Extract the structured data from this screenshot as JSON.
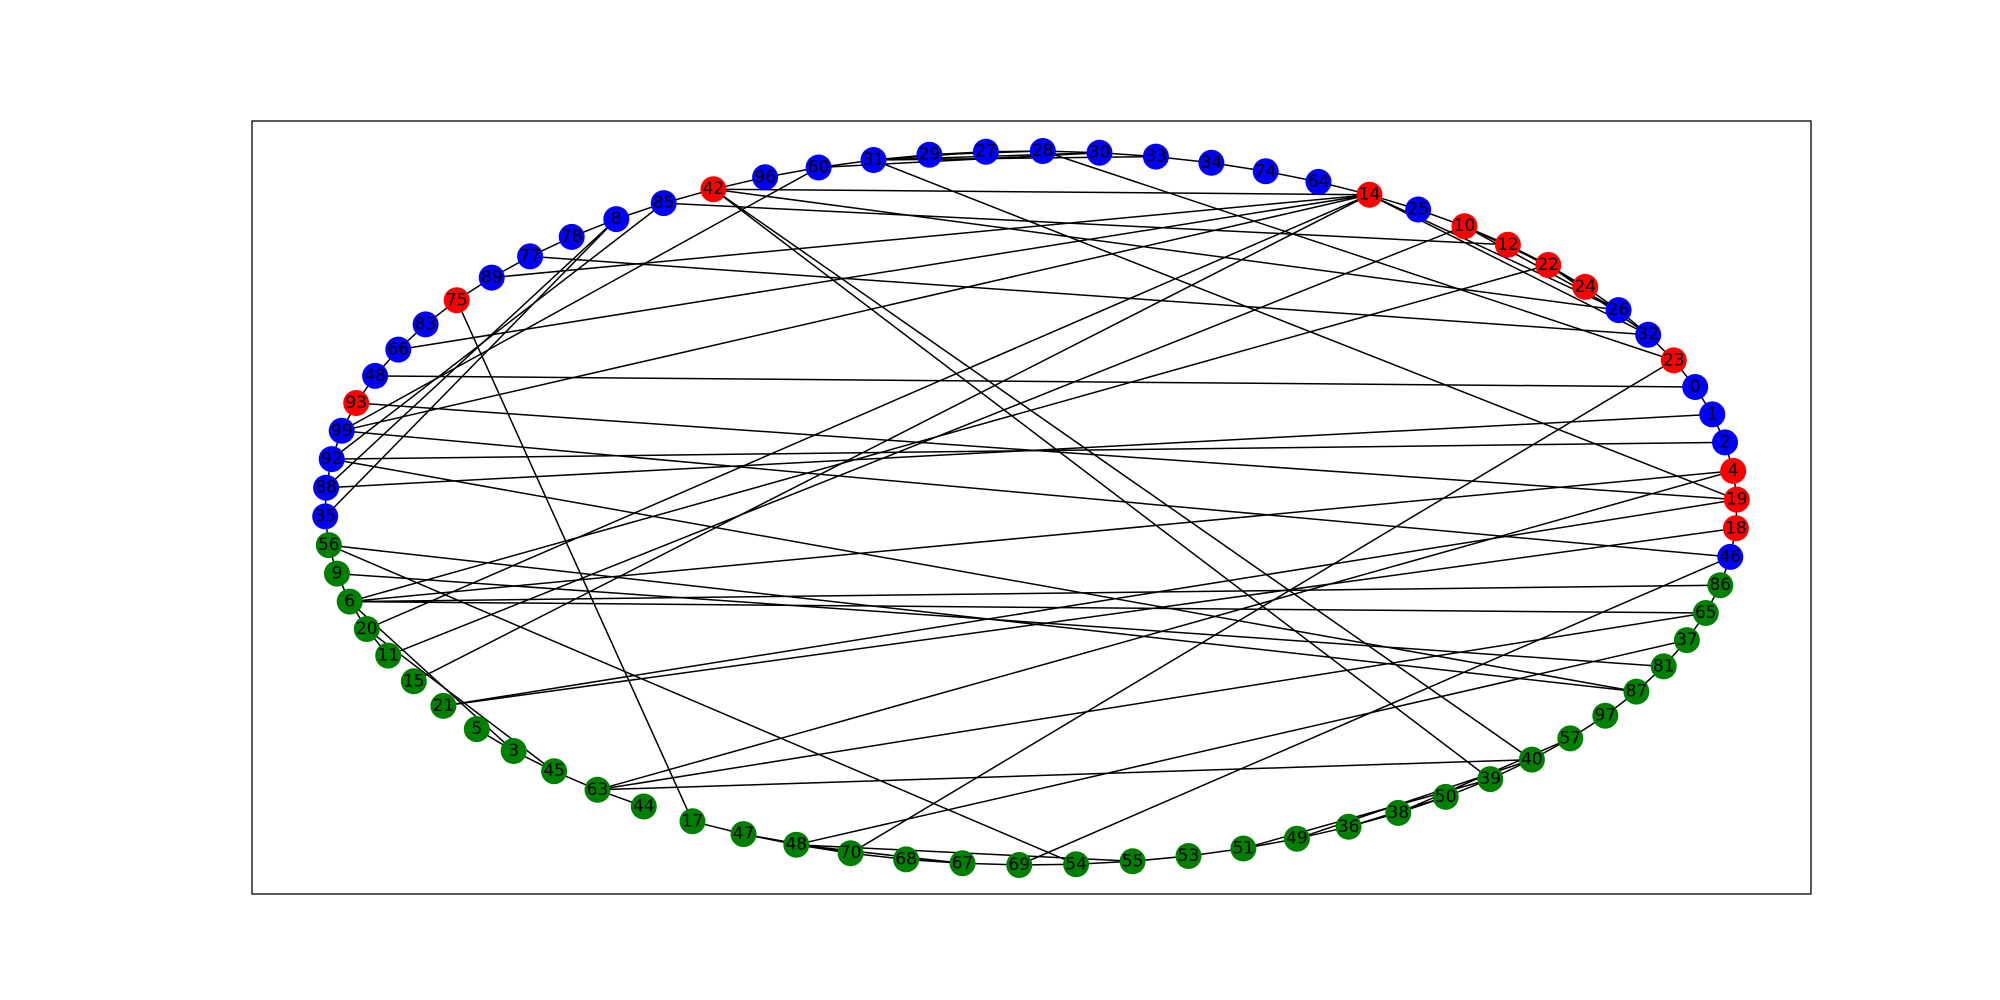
{
  "colors": {
    "red_group": "#ff0000",
    "blue_group": "#0000ff",
    "green_group": "#008000",
    "edge": "#000000",
    "background": "#ffffff",
    "label_text": "#000000"
  },
  "graph": {
    "layout": "circular",
    "nodes": [
      {
        "id": "14",
        "group": "red_group"
      },
      {
        "id": "25",
        "group": "blue_group"
      },
      {
        "id": "10",
        "group": "red_group"
      },
      {
        "id": "12",
        "group": "red_group"
      },
      {
        "id": "22",
        "group": "red_group"
      },
      {
        "id": "24",
        "group": "red_group"
      },
      {
        "id": "26",
        "group": "blue_group"
      },
      {
        "id": "32",
        "group": "blue_group"
      },
      {
        "id": "23",
        "group": "red_group"
      },
      {
        "id": "0",
        "group": "blue_group"
      },
      {
        "id": "1",
        "group": "blue_group"
      },
      {
        "id": "2",
        "group": "blue_group"
      },
      {
        "id": "4",
        "group": "red_group"
      },
      {
        "id": "19",
        "group": "red_group"
      },
      {
        "id": "18",
        "group": "red_group"
      },
      {
        "id": "46",
        "group": "blue_group"
      },
      {
        "id": "86",
        "group": "green_group"
      },
      {
        "id": "65",
        "group": "green_group"
      },
      {
        "id": "37",
        "group": "green_group"
      },
      {
        "id": "81",
        "group": "green_group"
      },
      {
        "id": "87",
        "group": "green_group"
      },
      {
        "id": "97",
        "group": "green_group"
      },
      {
        "id": "57",
        "group": "green_group"
      },
      {
        "id": "40",
        "group": "green_group"
      },
      {
        "id": "39",
        "group": "green_group"
      },
      {
        "id": "50",
        "group": "green_group"
      },
      {
        "id": "38",
        "group": "green_group"
      },
      {
        "id": "36",
        "group": "green_group"
      },
      {
        "id": "49",
        "group": "green_group"
      },
      {
        "id": "51",
        "group": "green_group"
      },
      {
        "id": "53",
        "group": "green_group"
      },
      {
        "id": "55",
        "group": "green_group"
      },
      {
        "id": "54",
        "group": "green_group"
      },
      {
        "id": "69",
        "group": "green_group"
      },
      {
        "id": "67",
        "group": "green_group"
      },
      {
        "id": "68",
        "group": "green_group"
      },
      {
        "id": "70",
        "group": "green_group"
      },
      {
        "id": "48",
        "group": "green_group"
      },
      {
        "id": "47",
        "group": "green_group"
      },
      {
        "id": "17",
        "group": "green_group"
      },
      {
        "id": "44",
        "group": "green_group"
      },
      {
        "id": "63",
        "group": "green_group"
      },
      {
        "id": "45",
        "group": "green_group"
      },
      {
        "id": "3",
        "group": "green_group"
      },
      {
        "id": "5",
        "group": "green_group"
      },
      {
        "id": "21",
        "group": "green_group"
      },
      {
        "id": "15",
        "group": "green_group"
      },
      {
        "id": "11",
        "group": "green_group"
      },
      {
        "id": "20",
        "group": "green_group"
      },
      {
        "id": "6",
        "group": "green_group"
      },
      {
        "id": "9",
        "group": "green_group"
      },
      {
        "id": "56",
        "group": "green_group"
      },
      {
        "id": "35",
        "group": "blue_group"
      },
      {
        "id": "88",
        "group": "blue_group"
      },
      {
        "id": "92",
        "group": "blue_group"
      },
      {
        "id": "99",
        "group": "blue_group"
      },
      {
        "id": "93",
        "group": "red_group"
      },
      {
        "id": "48b",
        "label": "48",
        "group": "blue_group"
      },
      {
        "id": "66",
        "group": "blue_group"
      },
      {
        "id": "83",
        "group": "blue_group"
      },
      {
        "id": "75",
        "group": "red_group"
      },
      {
        "id": "89",
        "group": "blue_group"
      },
      {
        "id": "77",
        "group": "blue_group"
      },
      {
        "id": "78",
        "group": "blue_group"
      },
      {
        "id": "8",
        "group": "blue_group"
      },
      {
        "id": "85",
        "group": "blue_group"
      },
      {
        "id": "42",
        "group": "red_group"
      },
      {
        "id": "96",
        "group": "blue_group"
      },
      {
        "id": "60",
        "group": "blue_group"
      },
      {
        "id": "31",
        "group": "blue_group"
      },
      {
        "id": "29",
        "group": "blue_group"
      },
      {
        "id": "27",
        "group": "blue_group"
      },
      {
        "id": "28",
        "group": "blue_group"
      },
      {
        "id": "30",
        "group": "blue_group"
      },
      {
        "id": "33",
        "group": "blue_group"
      },
      {
        "id": "34",
        "group": "blue_group"
      },
      {
        "id": "74",
        "group": "blue_group"
      },
      {
        "id": "64",
        "group": "blue_group"
      }
    ],
    "edges": [
      [
        "14",
        "25"
      ],
      [
        "25",
        "10"
      ],
      [
        "10",
        "12"
      ],
      [
        "12",
        "22"
      ],
      [
        "22",
        "24"
      ],
      [
        "24",
        "26"
      ],
      [
        "26",
        "32"
      ],
      [
        "32",
        "23"
      ],
      [
        "23",
        "0"
      ],
      [
        "0",
        "1"
      ],
      [
        "1",
        "2"
      ],
      [
        "2",
        "4"
      ],
      [
        "4",
        "19"
      ],
      [
        "19",
        "18"
      ],
      [
        "18",
        "46"
      ],
      [
        "46",
        "86"
      ],
      [
        "86",
        "65"
      ],
      [
        "65",
        "37"
      ],
      [
        "37",
        "81"
      ],
      [
        "81",
        "87"
      ],
      [
        "87",
        "97"
      ],
      [
        "97",
        "57"
      ],
      [
        "57",
        "40"
      ],
      [
        "40",
        "39"
      ],
      [
        "39",
        "50"
      ],
      [
        "50",
        "38"
      ],
      [
        "38",
        "36"
      ],
      [
        "36",
        "49"
      ],
      [
        "49",
        "51"
      ],
      [
        "51",
        "53"
      ],
      [
        "53",
        "55"
      ],
      [
        "55",
        "54"
      ],
      [
        "54",
        "69"
      ],
      [
        "69",
        "67"
      ],
      [
        "67",
        "68"
      ],
      [
        "68",
        "70"
      ],
      [
        "70",
        "48"
      ],
      [
        "48",
        "47"
      ],
      [
        "47",
        "17"
      ],
      [
        "44",
        "63"
      ],
      [
        "63",
        "45"
      ],
      [
        "45",
        "3"
      ],
      [
        "3",
        "5"
      ],
      [
        "11",
        "20"
      ],
      [
        "20",
        "6"
      ],
      [
        "6",
        "9"
      ],
      [
        "9",
        "56"
      ],
      [
        "56",
        "35"
      ],
      [
        "35",
        "88"
      ],
      [
        "88",
        "92"
      ],
      [
        "92",
        "99"
      ],
      [
        "99",
        "93"
      ],
      [
        "93",
        "48b"
      ],
      [
        "48b",
        "66"
      ],
      [
        "66",
        "83"
      ],
      [
        "83",
        "75"
      ],
      [
        "75",
        "89"
      ],
      [
        "89",
        "77"
      ],
      [
        "77",
        "78"
      ],
      [
        "78",
        "8"
      ],
      [
        "8",
        "85"
      ],
      [
        "85",
        "42"
      ],
      [
        "42",
        "96"
      ],
      [
        "96",
        "60"
      ],
      [
        "60",
        "31"
      ],
      [
        "31",
        "29"
      ],
      [
        "29",
        "27"
      ],
      [
        "27",
        "28"
      ],
      [
        "28",
        "30"
      ],
      [
        "30",
        "33"
      ],
      [
        "33",
        "34"
      ],
      [
        "34",
        "74"
      ],
      [
        "74",
        "64"
      ],
      [
        "64",
        "14"
      ],
      [
        "10",
        "22"
      ],
      [
        "12",
        "24"
      ],
      [
        "14",
        "26"
      ],
      [
        "14",
        "32"
      ],
      [
        "10",
        "26"
      ],
      [
        "22",
        "32"
      ],
      [
        "28",
        "23"
      ],
      [
        "30",
        "31"
      ],
      [
        "27",
        "31"
      ],
      [
        "29",
        "28"
      ],
      [
        "60",
        "30"
      ],
      [
        "31",
        "33"
      ],
      [
        "36",
        "50"
      ],
      [
        "38",
        "57"
      ],
      [
        "49",
        "40"
      ],
      [
        "51",
        "39"
      ],
      [
        "48",
        "67"
      ],
      [
        "47",
        "70"
      ],
      [
        "68",
        "67"
      ],
      [
        "12",
        "85"
      ],
      [
        "32",
        "77"
      ],
      [
        "0",
        "48b"
      ],
      [
        "1",
        "88"
      ],
      [
        "2",
        "92"
      ],
      [
        "19",
        "93"
      ],
      [
        "14",
        "99"
      ],
      [
        "14",
        "89"
      ],
      [
        "14",
        "66"
      ],
      [
        "42",
        "40"
      ],
      [
        "42",
        "39"
      ],
      [
        "42",
        "14"
      ],
      [
        "42",
        "26"
      ],
      [
        "31",
        "19"
      ],
      [
        "75",
        "17"
      ],
      [
        "56",
        "87"
      ],
      [
        "56",
        "54"
      ],
      [
        "9",
        "81"
      ],
      [
        "6",
        "65"
      ],
      [
        "6",
        "86"
      ],
      [
        "6",
        "4"
      ],
      [
        "6",
        "22"
      ],
      [
        "21",
        "18"
      ],
      [
        "21",
        "19"
      ],
      [
        "15",
        "14"
      ],
      [
        "11",
        "10"
      ],
      [
        "20",
        "14"
      ],
      [
        "63",
        "4"
      ],
      [
        "63",
        "65"
      ],
      [
        "69",
        "46"
      ],
      [
        "48",
        "37"
      ],
      [
        "48",
        "55"
      ],
      [
        "99",
        "46"
      ],
      [
        "92",
        "87"
      ],
      [
        "8",
        "88"
      ],
      [
        "8",
        "35"
      ],
      [
        "85",
        "92"
      ],
      [
        "60",
        "99"
      ],
      [
        "23",
        "70"
      ],
      [
        "20",
        "45"
      ],
      [
        "63",
        "40"
      ],
      [
        "3",
        "6"
      ]
    ]
  }
}
